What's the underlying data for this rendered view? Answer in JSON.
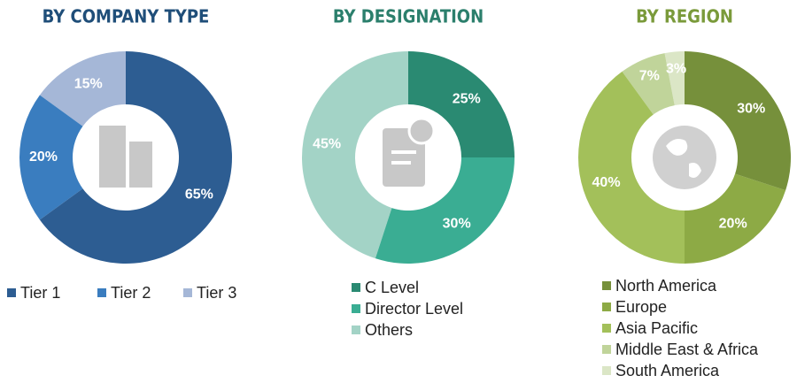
{
  "chart_data": [
    {
      "type": "pie",
      "title": "BY COMPANY TYPE",
      "title_color": "#1f4e79",
      "categories": [
        "Tier 1",
        "Tier 2",
        "Tier 3"
      ],
      "values": [
        65,
        20,
        15
      ],
      "value_labels": [
        "65%",
        "20%",
        "15%"
      ],
      "colors": [
        "#2d5d92",
        "#3a7dbf",
        "#a5b7d7"
      ]
    },
    {
      "type": "pie",
      "title": "BY DESIGNATION",
      "title_color": "#2b7f6c",
      "categories": [
        "C Level",
        "Director Level",
        "Others"
      ],
      "values": [
        25,
        30,
        45
      ],
      "value_labels": [
        "25%",
        "30%",
        "45%"
      ],
      "colors": [
        "#2a8a72",
        "#3aad93",
        "#a3d3c6"
      ]
    },
    {
      "type": "pie",
      "title": "BY REGION",
      "title_color": "#7a9a3a",
      "categories": [
        "North America",
        "Europe",
        "Asia Pacific",
        "Middle East & Africa",
        "South America"
      ],
      "values": [
        30,
        20,
        40,
        7,
        3
      ],
      "value_labels": [
        "30%",
        "20%",
        "40%",
        "7%",
        "3%"
      ],
      "colors": [
        "#76903b",
        "#8daa45",
        "#a3c05a",
        "#c0d49a",
        "#dbe6c6"
      ]
    }
  ]
}
